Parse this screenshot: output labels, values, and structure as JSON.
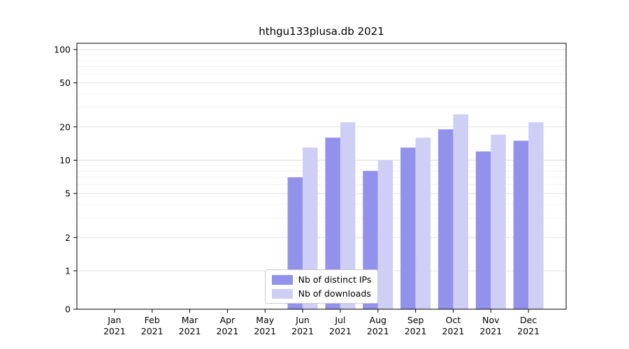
{
  "chart_data": {
    "type": "bar",
    "title": "hthgu133plusa.db 2021",
    "xlabel": "",
    "ylabel": "",
    "categories": [
      "Jan 2021",
      "Feb 2021",
      "Mar 2021",
      "Apr 2021",
      "May 2021",
      "Jun 2021",
      "Jul 2021",
      "Aug 2021",
      "Sep 2021",
      "Oct 2021",
      "Nov 2021",
      "Dec 2021"
    ],
    "series": [
      {
        "name": "Nb of distinct IPs",
        "color": "#9292ec",
        "values": [
          0,
          0,
          0,
          0,
          0,
          7,
          16,
          8,
          13,
          19,
          12,
          15
        ]
      },
      {
        "name": "Nb of downloads",
        "color": "#cfcff6",
        "values": [
          0,
          0,
          0,
          0,
          0,
          13,
          22,
          10,
          16,
          26,
          17,
          22
        ]
      }
    ],
    "yscale": "symlog",
    "ylim": [
      0,
      100
    ],
    "yticks": [
      0,
      1,
      2,
      5,
      10,
      20,
      50,
      100
    ],
    "yticks_minor": [
      3,
      4,
      6,
      7,
      8,
      9,
      30,
      40,
      60,
      70,
      80,
      90
    ],
    "grid": true,
    "legend_position": "lower center"
  },
  "colors": {
    "background": "#ffffff",
    "axis": "#000000",
    "grid_major": "#e2e2e2",
    "grid_minor": "#f2f2f2",
    "legend_border": "#cccccc"
  }
}
